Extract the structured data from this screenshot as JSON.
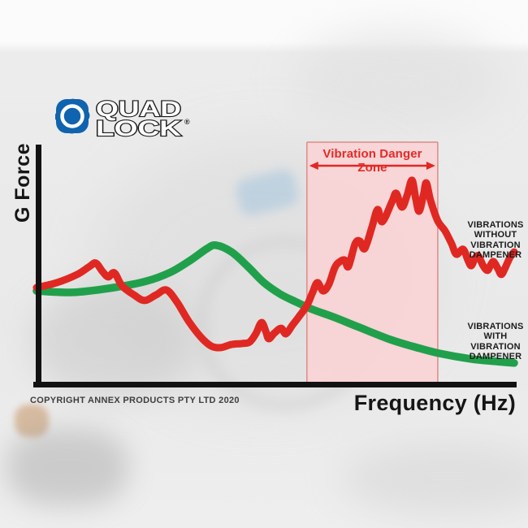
{
  "logo": {
    "line1": "QUAD",
    "line2": "LOCK",
    "reg": "®"
  },
  "chart": {
    "y_axis_label": "G Force",
    "x_axis_label": "Frequency (Hz)",
    "danger_zone_label": "Vibration Danger Zone",
    "label_without": "VIBRATIONS\nWITHOUT\nVIBRATION\nDAMPENER",
    "label_with": "VIBRATIONS\nWITH\nVIBRATION\nDAMPENER",
    "copyright": "COPYRIGHT ANNEX PRODUCTS PTY LTD 2020"
  },
  "colors": {
    "red": "#e02823",
    "green": "#21a04b",
    "zone_fill": "#f9d3d4",
    "zone_border": "#dd8b88",
    "axis": "#121212",
    "logo_blue": "#1063ae",
    "text_dark": "#1c1c1c"
  },
  "chart_data": {
    "type": "line",
    "title": "",
    "xlabel": "Frequency (Hz)",
    "ylabel": "G Force",
    "axis_numbers_shown": false,
    "x_units": "relative 0-100 (axis unlabeled)",
    "y_units": "relative 0-100 (axis unlabeled)",
    "grid": false,
    "legend_position": "right-inline-annotations",
    "danger_zone_x": [
      56.6,
      84.0
    ],
    "annotations": [
      {
        "text": "Vibration Danger Zone",
        "x_range": [
          56.6,
          84.0
        ]
      }
    ],
    "series": [
      {
        "name": "VIBRATIONS WITHOUT VIBRATION DAMPENER",
        "color": "#e02823",
        "points": [
          [
            0,
            40.6
          ],
          [
            4.3,
            42.7
          ],
          [
            8.5,
            46.1
          ],
          [
            11.1,
            49.5
          ],
          [
            12.4,
            50.9
          ],
          [
            13.8,
            47.4
          ],
          [
            15,
            45.1
          ],
          [
            16.3,
            46.8
          ],
          [
            17.9,
            41.3
          ],
          [
            20.4,
            37.5
          ],
          [
            22.6,
            35.2
          ],
          [
            25,
            37.5
          ],
          [
            27.2,
            39.6
          ],
          [
            29.4,
            34.5
          ],
          [
            31.8,
            26.6
          ],
          [
            34.4,
            19.8
          ],
          [
            36.6,
            16
          ],
          [
            38.6,
            15.4
          ],
          [
            40.8,
            16.7
          ],
          [
            43,
            17.1
          ],
          [
            44.6,
            17.7
          ],
          [
            45.9,
            21.2
          ],
          [
            47.1,
            25.9
          ],
          [
            48,
            22.2
          ],
          [
            48.6,
            19.1
          ],
          [
            49.8,
            21.5
          ],
          [
            51.2,
            23.5
          ],
          [
            52.2,
            21.2
          ],
          [
            53.6,
            24.9
          ],
          [
            54.9,
            28.3
          ],
          [
            56.6,
            33.1
          ],
          [
            57.8,
            38.6
          ],
          [
            58.8,
            42.7
          ],
          [
            60,
            39.2
          ],
          [
            61.2,
            42
          ],
          [
            62.4,
            48.8
          ],
          [
            63.3,
            51.2
          ],
          [
            64.5,
            52.2
          ],
          [
            65.3,
            49.5
          ],
          [
            66.7,
            59
          ],
          [
            67.7,
            60.1
          ],
          [
            68.7,
            57
          ],
          [
            70.2,
            65.9
          ],
          [
            71.4,
            73.4
          ],
          [
            72.4,
            68.3
          ],
          [
            74.5,
            77.1
          ],
          [
            75.3,
            80.2
          ],
          [
            76.5,
            74.4
          ],
          [
            77.6,
            79.5
          ],
          [
            78.6,
            85.7
          ],
          [
            79.4,
            77.8
          ],
          [
            80.1,
            72.7
          ],
          [
            81,
            79.5
          ],
          [
            81.6,
            84.6
          ],
          [
            82.5,
            77.1
          ],
          [
            84,
            68.6
          ],
          [
            85.5,
            64.5
          ],
          [
            86.9,
            59
          ],
          [
            87.9,
            54.6
          ],
          [
            89.3,
            56.7
          ],
          [
            90.3,
            52.2
          ],
          [
            91,
            49.8
          ],
          [
            91.8,
            52.9
          ],
          [
            92.5,
            53.9
          ],
          [
            93.5,
            49.8
          ],
          [
            94.4,
            47.8
          ],
          [
            95.1,
            50.2
          ],
          [
            95.7,
            51.5
          ],
          [
            96.6,
            48.5
          ],
          [
            97.3,
            46.1
          ],
          [
            98.1,
            48.8
          ],
          [
            99.1,
            53.2
          ],
          [
            100,
            55.6
          ]
        ]
      },
      {
        "name": "VIBRATIONS WITH VIBRATION DAMPENER",
        "color": "#21a04b",
        "points": [
          [
            0,
            39.2
          ],
          [
            7.7,
            38.6
          ],
          [
            16.2,
            40.6
          ],
          [
            23,
            43.3
          ],
          [
            28.1,
            47.1
          ],
          [
            32.3,
            52.2
          ],
          [
            35.7,
            57
          ],
          [
            37.6,
            58.4
          ],
          [
            40.8,
            55.6
          ],
          [
            44.2,
            49.5
          ],
          [
            47.6,
            42.7
          ],
          [
            51,
            37.9
          ],
          [
            54.4,
            34.5
          ],
          [
            57.8,
            31.4
          ],
          [
            62.1,
            28.3
          ],
          [
            67.2,
            24.2
          ],
          [
            74,
            18.8
          ],
          [
            79.1,
            15.7
          ],
          [
            84.2,
            13
          ],
          [
            91,
            10.6
          ],
          [
            96.1,
            9.6
          ],
          [
            100,
            8.9
          ]
        ]
      }
    ]
  }
}
